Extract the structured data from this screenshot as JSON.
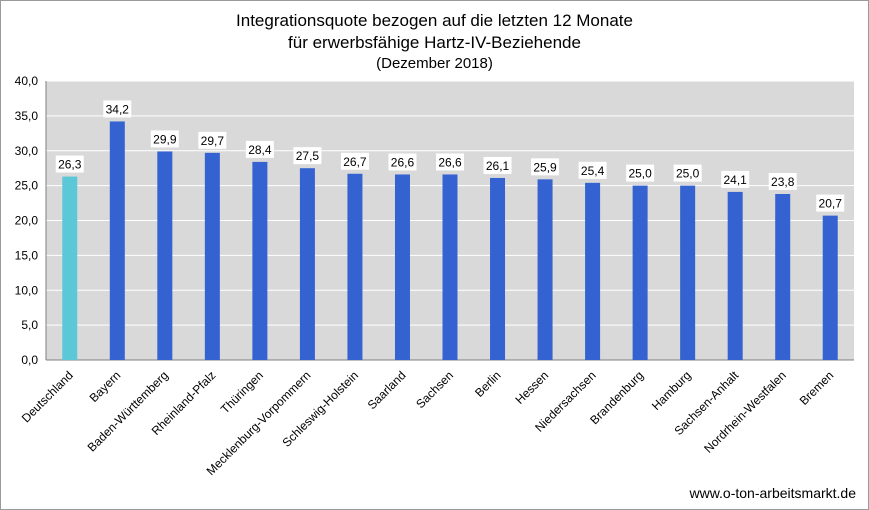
{
  "chart_data": {
    "type": "bar",
    "title": [
      "Integrationsquote bezogen auf die letzten 12 Monate",
      "für erwerbsfähige Hartz-IV-Beziehende"
    ],
    "subtitle": "(Dezember 2018)",
    "xlabel": "",
    "ylabel": "",
    "ylim": [
      0,
      40
    ],
    "yticks": [
      "0,0",
      "5,0",
      "10,0",
      "15,0",
      "20,0",
      "25,0",
      "30,0",
      "35,0",
      "40,0"
    ],
    "grid": true,
    "legend": "none",
    "categories": [
      "Deutschland",
      "Bayern",
      "Baden-Württemberg",
      "Rheinland-Pfalz",
      "Thüringen",
      "Mecklenburg-Vorpommern",
      "Schleswig-Holstein",
      "Saarland",
      "Sachsen",
      "Berlin",
      "Hessen",
      "Niedersachsen",
      "Brandenburg",
      "Hamburg",
      "Sachsen-Anhalt",
      "Nordrhein-Westfalen",
      "Bremen"
    ],
    "values": [
      26.3,
      34.2,
      29.9,
      29.7,
      28.4,
      27.5,
      26.7,
      26.6,
      26.6,
      26.1,
      25.9,
      25.4,
      25.0,
      25.0,
      24.1,
      23.8,
      20.7
    ],
    "data_labels": [
      "26,3",
      "34,2",
      "29,9",
      "29,7",
      "28,4",
      "27,5",
      "26,7",
      "26,6",
      "26,6",
      "26,1",
      "25,9",
      "25,4",
      "25,0",
      "25,0",
      "24,1",
      "23,8",
      "20,7"
    ],
    "colors": {
      "highlight": "#5cc8d7",
      "bar": "#3462d1",
      "plot_background": "#d9d9d9",
      "gridline": "#ffffff"
    }
  },
  "source": "www.o-ton-arbeitsmarkt.de"
}
